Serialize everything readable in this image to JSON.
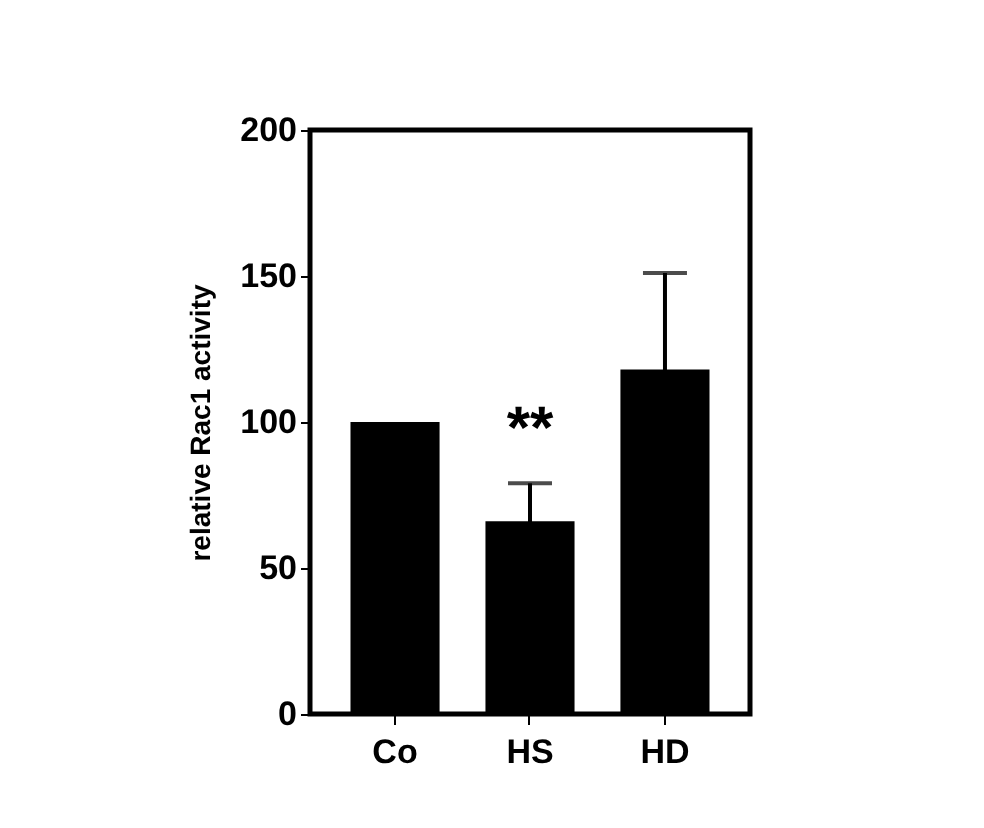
{
  "chart_data": {
    "type": "bar",
    "ylabel": "relative Rac1 activity",
    "categories": [
      "Co",
      "HS",
      "HD"
    ],
    "values": [
      100,
      66,
      118
    ],
    "errors": [
      null,
      13,
      33
    ],
    "color": "#000000",
    "ylim": [
      0,
      200
    ],
    "yticks": [
      0,
      50,
      100,
      150,
      200
    ],
    "grid": false,
    "annotations": [
      "**"
    ]
  }
}
